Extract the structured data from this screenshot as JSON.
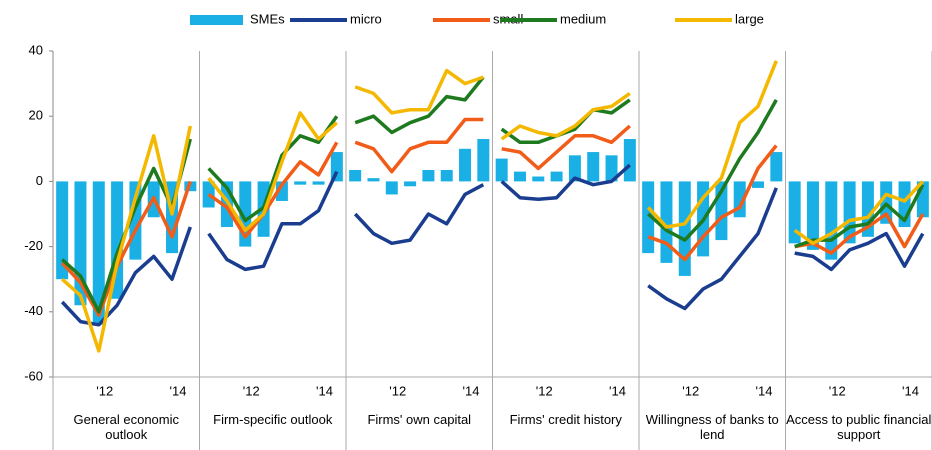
{
  "chart_data": {
    "type": "combo",
    "legend_position": "top",
    "grid": false,
    "ylim": [
      -60,
      40
    ],
    "yticks": [
      -60,
      -40,
      -20,
      0,
      20,
      40
    ],
    "categories": [
      null,
      null,
      "'12",
      null,
      null,
      null,
      "'14",
      null
    ],
    "panels": [
      "General economic outlook",
      "Firm-specific outlook",
      "Firms' own capital",
      "Firms' credit history",
      "Willingness of banks to lend",
      "Access to public financial support"
    ],
    "series": [
      {
        "name": "SMEs",
        "type": "bar",
        "color": "#1ab0e6",
        "values": [
          [
            -30,
            -38,
            -44,
            -36,
            -24,
            -11,
            -22,
            -3
          ],
          [
            -8,
            -14,
            -20,
            -17,
            -6,
            -1,
            -1,
            9
          ],
          [
            3.5,
            1,
            -4,
            -1.5,
            3.5,
            3.5,
            10,
            13
          ],
          [
            7,
            3,
            1.5,
            3,
            8,
            9,
            8,
            13
          ],
          [
            -22,
            -25,
            -29,
            -23,
            -18,
            -11,
            -2,
            9
          ],
          [
            -19,
            -21,
            -24,
            -19,
            -17,
            -13,
            -14,
            -11
          ]
        ]
      },
      {
        "name": "micro",
        "type": "line",
        "color": "#1a3d8f",
        "values": [
          [
            -37,
            -43,
            -44,
            -38,
            -28,
            -23,
            -30,
            -14
          ],
          [
            -16,
            -24,
            -27,
            -26,
            -13,
            -13,
            -9,
            3
          ],
          [
            -10,
            -16,
            -19,
            -18,
            -10,
            -13,
            -4,
            -1
          ],
          [
            0,
            -5,
            -5.5,
            -5,
            1,
            -1,
            0,
            5
          ],
          [
            -32,
            -36,
            -39,
            -33,
            -30,
            -23,
            -16,
            -2
          ],
          [
            -22,
            -23,
            -27,
            -21,
            -19,
            -16,
            -26,
            -16
          ]
        ]
      },
      {
        "name": "small",
        "type": "line",
        "color": "#f25c19",
        "values": [
          [
            -25,
            -31,
            -41,
            -26,
            -15,
            -5,
            -17,
            0
          ],
          [
            -4,
            -8,
            -17,
            -10,
            -1,
            6,
            2,
            12
          ],
          [
            12,
            10,
            3,
            10,
            12,
            12,
            19,
            19
          ],
          [
            10,
            9,
            4,
            9,
            14,
            14,
            12,
            17
          ],
          [
            -17,
            -19,
            -24,
            -17,
            -11,
            -8,
            4,
            11
          ],
          [
            -20,
            -19,
            -22,
            -17,
            -14,
            -10,
            -20,
            -10
          ]
        ]
      },
      {
        "name": "medium",
        "type": "line",
        "color": "#1e7a1e",
        "values": [
          [
            -24,
            -29,
            -40,
            -22,
            -8,
            4,
            -8,
            13
          ],
          [
            4,
            -2,
            -12,
            -8,
            8,
            14,
            12,
            20
          ],
          [
            18,
            20,
            15,
            18,
            20,
            26,
            25,
            32
          ],
          [
            16,
            12,
            12,
            14,
            16,
            22,
            21,
            25
          ],
          [
            -10,
            -15,
            -18,
            -12,
            -3,
            7,
            15,
            25
          ],
          [
            -20,
            -18,
            -18,
            -14,
            -13,
            -7,
            -12,
            -1
          ]
        ]
      },
      {
        "name": "large",
        "type": "line",
        "color": "#f5b800",
        "values": [
          [
            -30,
            -35,
            -52,
            -25,
            -5,
            14,
            -10,
            17
          ],
          [
            1,
            -6,
            -15,
            -10,
            6,
            21,
            13,
            18
          ],
          [
            29,
            27,
            21,
            22,
            22,
            34,
            30,
            32
          ],
          [
            13,
            17,
            15,
            14,
            17,
            22,
            23,
            27
          ],
          [
            -8,
            -14,
            -13,
            -5,
            1,
            18,
            23,
            37
          ],
          [
            -15,
            -19,
            -16,
            -12,
            -11,
            -4,
            -6,
            0
          ]
        ]
      }
    ]
  }
}
